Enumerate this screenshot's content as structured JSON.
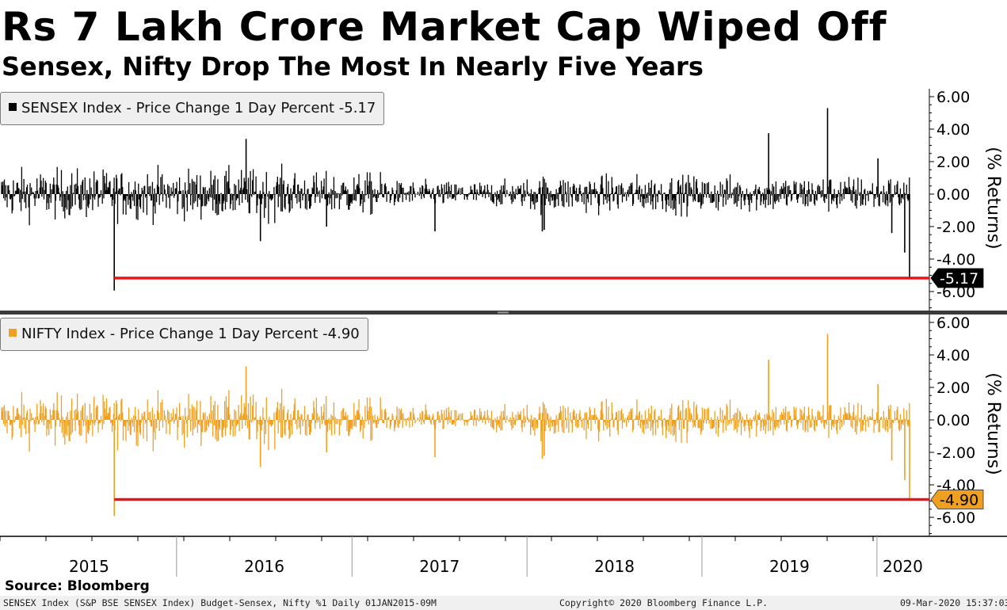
{
  "header": {
    "title": "Rs 7 Lakh Crore Market Cap Wiped Off",
    "subtitle": "Sensex, Nifty Drop The Most In Nearly Five Years"
  },
  "chart_data": [
    {
      "type": "bar",
      "legend": "SENSEX Index - Price Change 1 Day Percent -5.17",
      "ylabel": "(% Returns)",
      "yticks": [
        "6.00",
        "4.00",
        "2.00",
        "0.00",
        "-2.00",
        "-4.00",
        "-6.00"
      ],
      "ylim": [
        -6.5,
        6.5
      ],
      "color": "#000000",
      "last_value": -5.17,
      "last_label": "-5.17",
      "reference_line": -5.17,
      "reference_color": "#e8141c",
      "x_range": [
        "2015-01-01",
        "2020-03-09"
      ],
      "notable_values": [
        {
          "date": "2015-08-24",
          "value": -5.94
        },
        {
          "date": "2016-05-25",
          "value": 3.4
        },
        {
          "date": "2016-06-24",
          "value": -2.9
        },
        {
          "date": "2016-11-09",
          "value": -2.0
        },
        {
          "date": "2017-06-23",
          "value": -2.3
        },
        {
          "date": "2018-02-02",
          "value": -2.3
        },
        {
          "date": "2018-02-06",
          "value": -2.2
        },
        {
          "date": "2019-05-20",
          "value": 3.75
        },
        {
          "date": "2019-09-20",
          "value": 5.3
        },
        {
          "date": "2020-01-03",
          "value": 2.2
        },
        {
          "date": "2020-02-01",
          "value": -2.4
        },
        {
          "date": "2020-02-28",
          "value": -3.6
        },
        {
          "date": "2020-03-09",
          "value": -5.17
        }
      ]
    },
    {
      "type": "bar",
      "legend": "NIFTY Index - Price Change 1 Day Percent -4.90",
      "ylabel": "(% Returns)",
      "yticks": [
        "6.00",
        "4.00",
        "2.00",
        "0.00",
        "-2.00",
        "-4.00",
        "-6.00"
      ],
      "ylim": [
        -6.5,
        6.5
      ],
      "color": "#f0a020",
      "last_value": -4.9,
      "last_label": "-4.90",
      "reference_line": -4.9,
      "reference_color": "#e8141c",
      "x_range": [
        "2015-01-01",
        "2020-03-09"
      ],
      "notable_values": [
        {
          "date": "2015-08-24",
          "value": -5.92
        },
        {
          "date": "2016-05-25",
          "value": 3.3
        },
        {
          "date": "2016-06-24",
          "value": -2.9
        },
        {
          "date": "2016-11-09",
          "value": -2.0
        },
        {
          "date": "2017-06-23",
          "value": -2.3
        },
        {
          "date": "2018-02-02",
          "value": -2.4
        },
        {
          "date": "2018-02-06",
          "value": -2.2
        },
        {
          "date": "2019-05-20",
          "value": 3.7
        },
        {
          "date": "2019-09-20",
          "value": 5.3
        },
        {
          "date": "2020-01-03",
          "value": 2.2
        },
        {
          "date": "2020-02-01",
          "value": -2.5
        },
        {
          "date": "2020-02-28",
          "value": -3.7
        },
        {
          "date": "2020-03-09",
          "value": -4.9
        }
      ]
    }
  ],
  "xaxis": {
    "labels": [
      "2015",
      "2016",
      "2017",
      "2018",
      "2019",
      "2020"
    ]
  },
  "footer": {
    "source": "Source: Bloomberg",
    "left": "SENSEX Index (S&P BSE SENSEX Index) Budget-Sensex, Nifty %1  Daily 01JAN2015-09M",
    "center": "Copyright© 2020 Bloomberg Finance L.P.",
    "right": "09-Mar-2020 15:37:03"
  }
}
